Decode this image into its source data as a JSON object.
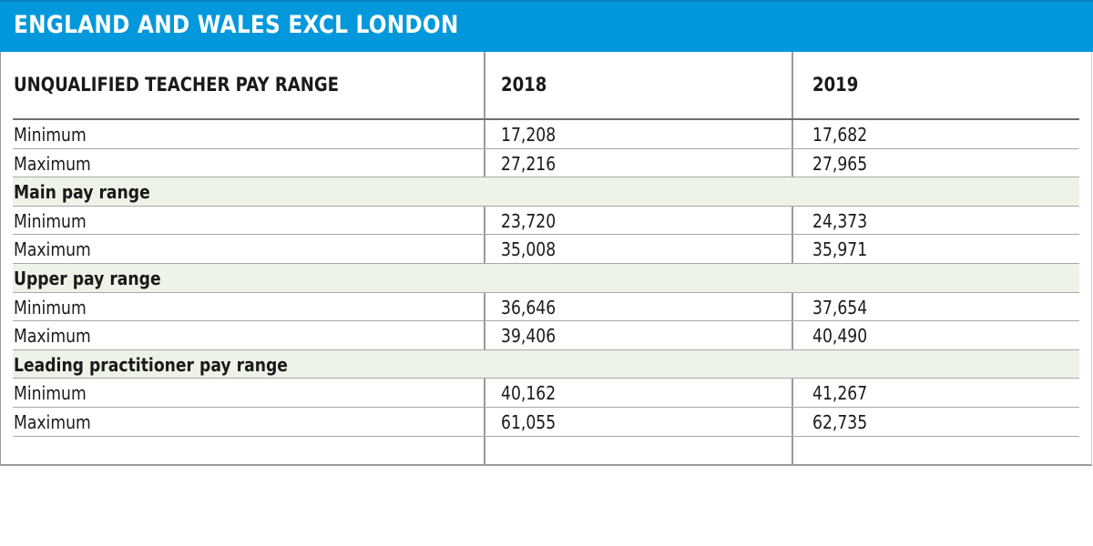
{
  "banner": {
    "title": "ENGLAND AND WALES EXCL LONDON",
    "color": "#0398dc"
  },
  "table": {
    "headers": [
      "UNQUALIFIED TEACHER PAY RANGE",
      "2018",
      "2019"
    ],
    "rows": [
      {
        "label": "Minimum",
        "y2018": "17,208",
        "y2019": "17,682",
        "section": false
      },
      {
        "label": "Maximum",
        "y2018": "27,216",
        "y2019": "27,965",
        "section": false
      },
      {
        "label": "Main pay range",
        "y2018": "",
        "y2019": "",
        "section": true
      },
      {
        "label": "Minimum",
        "y2018": "23,720",
        "y2019": "24,373",
        "section": false
      },
      {
        "label": "Maximum",
        "y2018": "35,008",
        "y2019": "35,971",
        "section": false
      },
      {
        "label": "Upper pay range",
        "y2018": "",
        "y2019": "",
        "section": true
      },
      {
        "label": "Minimum",
        "y2018": "36,646",
        "y2019": "37,654",
        "section": false
      },
      {
        "label": "Maximum",
        "y2018": "39,406",
        "y2019": "40,490",
        "section": false
      },
      {
        "label": "Leading practitioner pay range",
        "y2018": "",
        "y2019": "",
        "section": true
      },
      {
        "label": "Minimum",
        "y2018": "40,162",
        "y2019": "41,267",
        "section": false
      },
      {
        "label": "Maximum",
        "y2018": "61,055",
        "y2019": "62,735",
        "section": false
      },
      {
        "label": "",
        "y2018": "",
        "y2019": "",
        "section": false
      }
    ],
    "section_color": "#eef3e8"
  }
}
